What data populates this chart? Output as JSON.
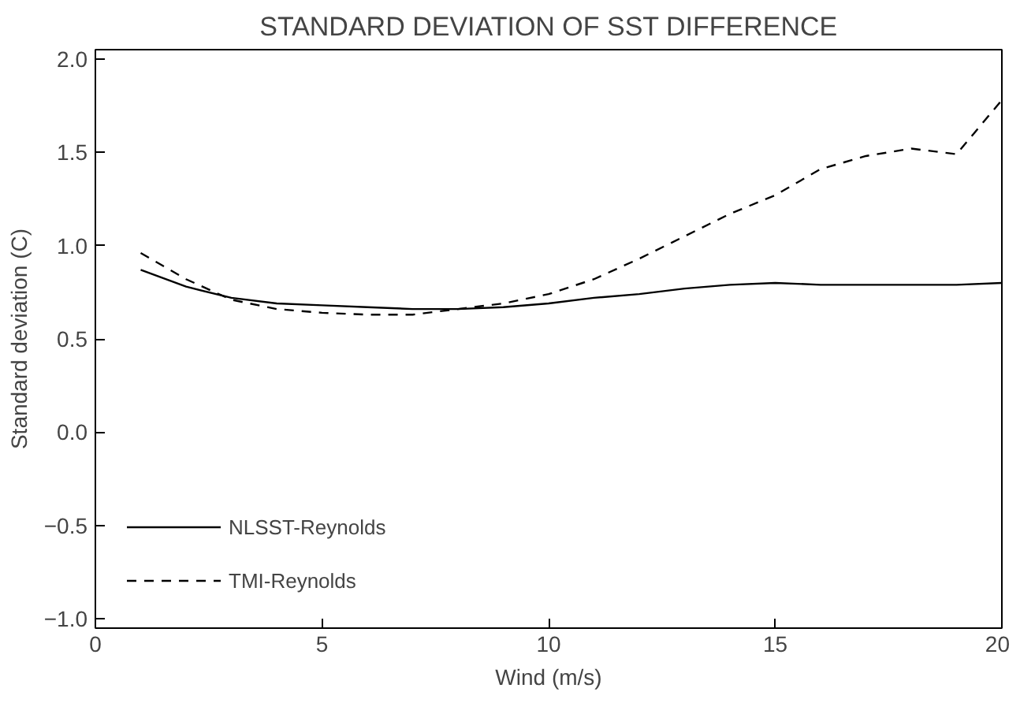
{
  "chart_data": {
    "type": "line",
    "title": "STANDARD DEVIATION OF SST DIFFERENCE",
    "xlabel": "Wind (m/s)",
    "ylabel": "Standard deviation (C)",
    "x": [
      1,
      2,
      3,
      4,
      5,
      6,
      7,
      8,
      9,
      10,
      11,
      12,
      13,
      14,
      15,
      16,
      17,
      18,
      19,
      20
    ],
    "series": [
      {
        "name": "NLSST-Reynolds",
        "color": "#000000",
        "line_style": "solid",
        "values": [
          0.87,
          0.78,
          0.72,
          0.69,
          0.68,
          0.67,
          0.66,
          0.66,
          0.67,
          0.69,
          0.72,
          0.74,
          0.77,
          0.79,
          0.8,
          0.79,
          0.79,
          0.79,
          0.79,
          0.8
        ]
      },
      {
        "name": "TMI-Reynolds",
        "color": "#000000",
        "line_style": "dashed",
        "values": [
          0.96,
          0.82,
          0.71,
          0.66,
          0.64,
          0.63,
          0.63,
          0.66,
          0.69,
          0.74,
          0.82,
          0.93,
          1.05,
          1.17,
          1.27,
          1.41,
          1.48,
          1.52,
          1.49,
          1.78
        ]
      }
    ],
    "xlim": [
      0,
      20
    ],
    "xticks": [
      0,
      5,
      10,
      15,
      20
    ],
    "ylim": [
      -1.05,
      2.05
    ],
    "yticks": [
      {
        "value": -1.0,
        "label": "−1.0"
      },
      {
        "value": -0.5,
        "label": "−0.5"
      },
      {
        "value": 0.0,
        "label": "0.0"
      },
      {
        "value": 0.5,
        "label": "0.5"
      },
      {
        "value": 1.0,
        "label": "1.0"
      },
      {
        "value": 1.5,
        "label": "1.5"
      },
      {
        "value": 2.0,
        "label": "2.0"
      }
    ],
    "grid": false,
    "legend": "bottom left",
    "marker": "none"
  }
}
